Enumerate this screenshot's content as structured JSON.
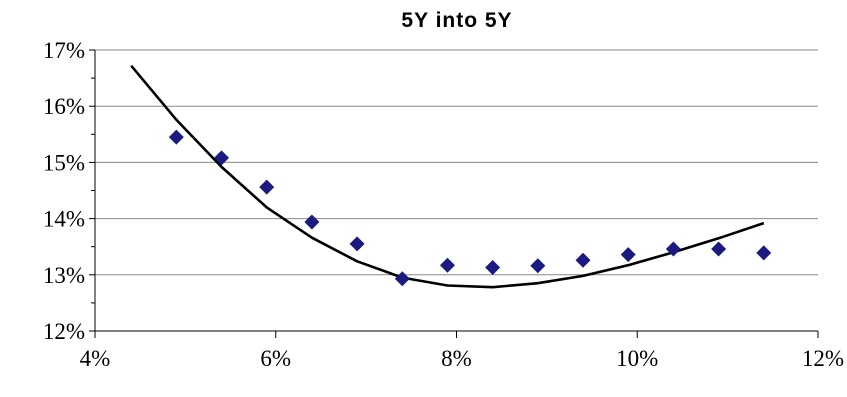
{
  "chart_data": {
    "type": "scatter",
    "title": "5Y into 5Y",
    "xlabel": "",
    "ylabel": "",
    "x_ticks": [
      "4%",
      "6%",
      "8%",
      "10%",
      "12%"
    ],
    "y_ticks": [
      "12%",
      "13%",
      "14%",
      "15%",
      "16%",
      "17%"
    ],
    "xlim": [
      4,
      12
    ],
    "ylim": [
      12,
      17
    ],
    "grid": "horizontal",
    "legend": "none",
    "series": [
      {
        "kind": "scatter",
        "marker": "diamond",
        "color": "#1a1a80",
        "x": [
          4.9,
          5.4,
          5.9,
          6.4,
          6.9,
          7.4,
          7.9,
          8.4,
          8.9,
          9.4,
          9.9,
          10.4,
          10.9,
          11.4
        ],
        "y": [
          15.45,
          15.08,
          14.56,
          13.94,
          13.55,
          12.93,
          13.17,
          13.13,
          13.16,
          13.26,
          13.36,
          13.46,
          13.46,
          13.39
        ]
      },
      {
        "kind": "line",
        "color": "#000000",
        "x": [
          4.4,
          4.9,
          5.4,
          5.9,
          6.4,
          6.9,
          7.4,
          7.9,
          8.4,
          8.9,
          9.4,
          9.9,
          10.4,
          10.9,
          11.4
        ],
        "y": [
          16.72,
          15.76,
          14.92,
          14.2,
          13.66,
          13.24,
          12.95,
          12.81,
          12.78,
          12.85,
          12.98,
          13.17,
          13.4,
          13.65,
          13.92
        ]
      }
    ]
  }
}
